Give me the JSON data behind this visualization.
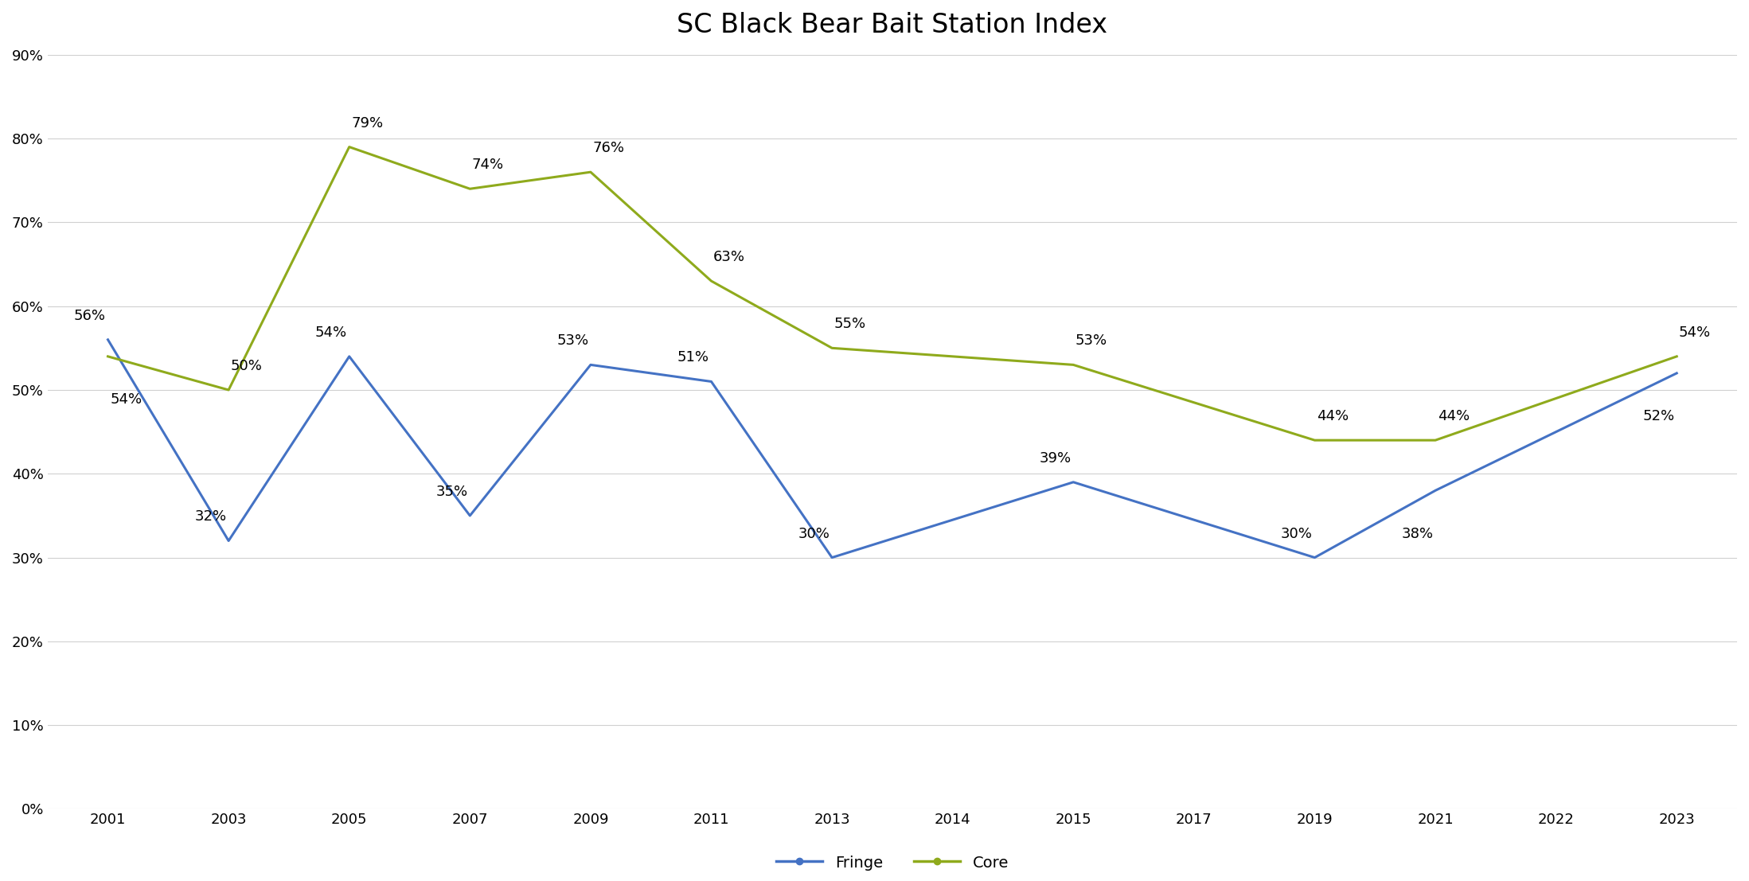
{
  "title": "SC Black Bear Bait Station Index",
  "fringe_label": "Fringe",
  "core_label": "Core",
  "x_labels": [
    "2001",
    "2003",
    "2005",
    "2007",
    "2009",
    "2011",
    "2013",
    "2014",
    "2015",
    "2017",
    "2019",
    "2021",
    "2022",
    "2023"
  ],
  "fringe_values": [
    56,
    32,
    54,
    35,
    53,
    51,
    30,
    null,
    39,
    null,
    30,
    38,
    null,
    52
  ],
  "core_values": [
    54,
    50,
    79,
    74,
    76,
    63,
    55,
    null,
    53,
    null,
    44,
    44,
    null,
    54
  ],
  "fringe_color": "#4472C4",
  "core_color": "#8faa1c",
  "ylim": [
    0,
    90
  ],
  "ytick_step": 10,
  "background_color": "#ffffff",
  "grid_color": "#d0d0d0",
  "annotation_fontsize": 13,
  "title_fontsize": 24,
  "legend_fontsize": 14,
  "tick_fontsize": 13,
  "linewidth": 2.2,
  "marker_size": 0
}
